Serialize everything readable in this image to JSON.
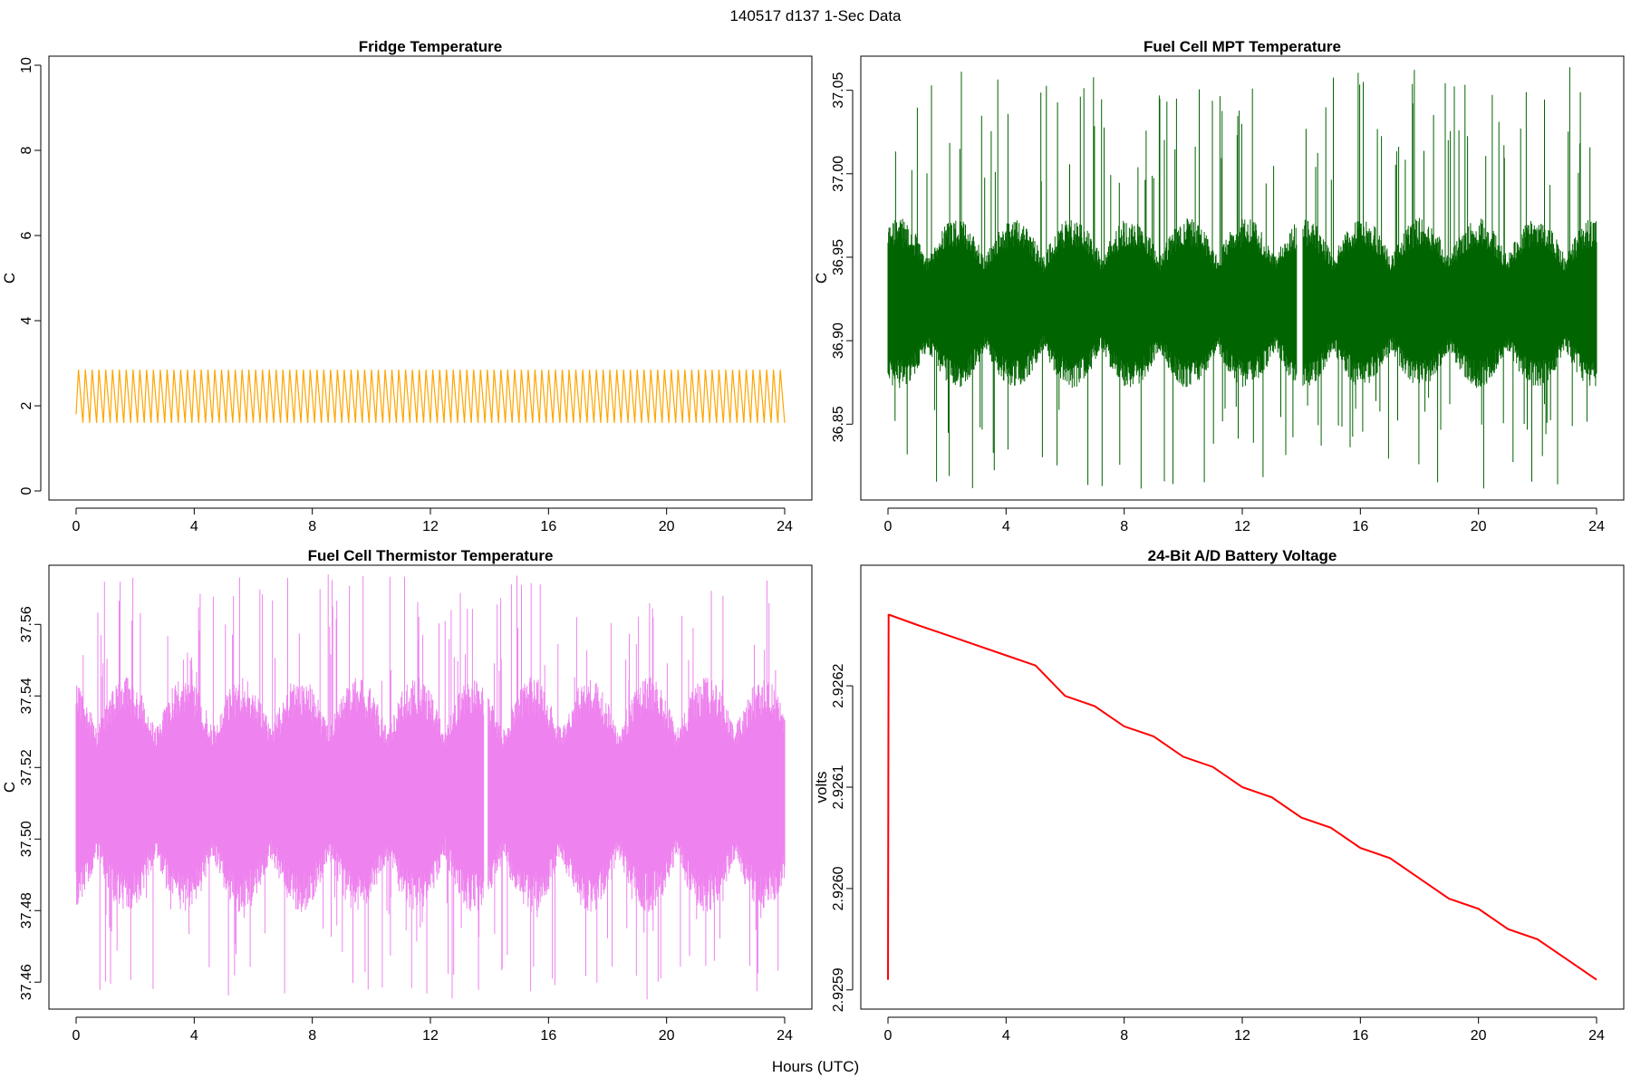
{
  "page": {
    "main_title": "140517   d137   1-Sec Data",
    "x_axis_label": "Hours (UTC)"
  },
  "chart_data": [
    {
      "type": "line",
      "title": "Fridge Temperature",
      "xlabel": "",
      "ylabel": "C",
      "color": "#FFA500",
      "xlim": [
        0,
        24
      ],
      "ylim": [
        0,
        10
      ],
      "x_ticks": [
        0,
        4,
        8,
        12,
        16,
        20,
        24
      ],
      "y_ticks": [
        "0",
        "2",
        "4",
        "6",
        "8",
        "10"
      ],
      "pattern": "sawtooth",
      "cycle_count": 104,
      "range": [
        1.6,
        2.85
      ],
      "gap": null,
      "grid": false,
      "legend": "none"
    },
    {
      "type": "line",
      "title": "Fuel Cell MPT Temperature",
      "xlabel": "",
      "ylabel": "C",
      "color": "#006400",
      "xlim": [
        0,
        24
      ],
      "ylim": [
        36.81,
        37.065
      ],
      "x_ticks": [
        0,
        4,
        8,
        12,
        16,
        20,
        24
      ],
      "y_ticks": [
        "36.85",
        "36.90",
        "36.95",
        "37.00",
        "37.05"
      ],
      "pattern": "noise",
      "mean": 36.922,
      "band_range": [
        36.88,
        36.965
      ],
      "spike_range": [
        36.81,
        37.064
      ],
      "gap": [
        13.85,
        14.05
      ],
      "grid": false,
      "legend": "none"
    },
    {
      "type": "line",
      "title": "Fuel Cell Thermistor Temperature",
      "xlabel": "",
      "ylabel": "C",
      "color": "#EE82EE",
      "xlim": [
        0,
        24
      ],
      "ylim": [
        37.455,
        37.574
      ],
      "x_ticks": [
        0,
        4,
        8,
        12,
        16,
        20,
        24
      ],
      "y_ticks": [
        "37.46",
        "37.48",
        "37.50",
        "37.52",
        "37.54",
        "37.56"
      ],
      "pattern": "noise",
      "mean": 37.513,
      "band_range": [
        37.485,
        37.54
      ],
      "spike_range": [
        37.455,
        37.574
      ],
      "gap": [
        13.8,
        13.95
      ],
      "grid": false,
      "legend": "none"
    },
    {
      "type": "line",
      "title": "24-Bit A/D Battery Voltage",
      "xlabel": "",
      "ylabel": "volts",
      "color": "#FF0000",
      "xlim": [
        0,
        24
      ],
      "ylim": [
        2.92589,
        2.92631
      ],
      "x_ticks": [
        0,
        4,
        8,
        12,
        16,
        20,
        24
      ],
      "y_ticks": [
        "2.9259",
        "2.9260",
        "2.9261",
        "2.9262"
      ],
      "pattern": "drift",
      "x": [
        0,
        0.02,
        0.05,
        1,
        2,
        3,
        4,
        5,
        6,
        7,
        8,
        9,
        10,
        11,
        12,
        13,
        14,
        15,
        16,
        17,
        18,
        19,
        20,
        21,
        22,
        23,
        24
      ],
      "y": [
        2.92591,
        2.92627,
        2.92627,
        2.92626,
        2.92625,
        2.92624,
        2.92623,
        2.92622,
        2.92619,
        2.92618,
        2.92616,
        2.92615,
        2.92613,
        2.92612,
        2.9261,
        2.92609,
        2.92607,
        2.92606,
        2.92604,
        2.92603,
        2.92601,
        2.92599,
        2.92598,
        2.92596,
        2.92595,
        2.92593,
        2.92591
      ]
    }
  ]
}
